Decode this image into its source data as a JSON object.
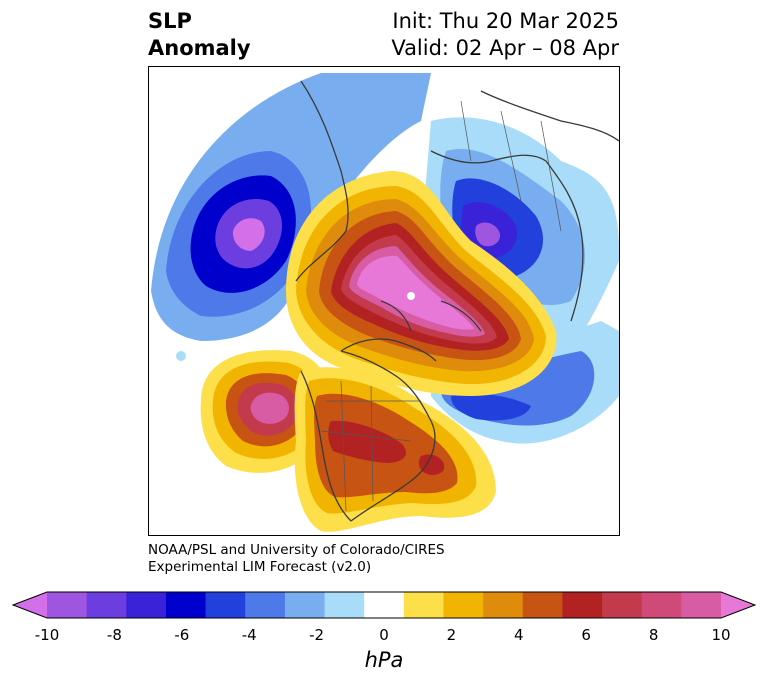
{
  "title": {
    "left_line1": "SLP",
    "left_line2": "Anomaly",
    "right_line1": "Init: Thu 20 Mar 2025",
    "right_line2": "Valid: 02 Apr – 08 Apr"
  },
  "credit": {
    "line1": "NOAA/PSL and University of Colorado/CIRES",
    "line2": "Experimental LIM Forecast (v2.0)"
  },
  "colorbar": {
    "unit": "hPa",
    "tick_labels": [
      "-10",
      "-8",
      "-6",
      "-4",
      "-2",
      "0",
      "2",
      "4",
      "6",
      "8",
      "10"
    ],
    "levels": [
      -10,
      -9,
      -8,
      -7,
      -6,
      -5,
      -4,
      -3,
      -2,
      -1,
      1,
      2,
      3,
      4,
      5,
      6,
      7,
      8,
      9,
      10
    ],
    "colors": [
      "#d36fe8",
      "#9e55e0",
      "#6c3ee0",
      "#3a22d8",
      "#0000cc",
      "#2241dc",
      "#4e79e8",
      "#78aef0",
      "#a8dcf8",
      "#ffffff",
      "#fddf4a",
      "#f1b400",
      "#df8c0c",
      "#c85414",
      "#b22222",
      "#c23a4c",
      "#cf4a78",
      "#d85ca4",
      "#e878d8"
    ]
  },
  "map": {
    "projection": "north-polar-stereographic",
    "variable": "sea level pressure anomaly",
    "features": [
      {
        "name": "north-pacific-low",
        "sign": "negative",
        "peak": -9
      },
      {
        "name": "scandinavian-low",
        "sign": "negative",
        "peak": -9
      },
      {
        "name": "north-atlantic-low",
        "sign": "negative",
        "peak": -6
      },
      {
        "name": "arctic-high",
        "sign": "positive",
        "peak": 10
      },
      {
        "name": "northeast-pacific-high",
        "sign": "positive",
        "peak": 9
      },
      {
        "name": "north-america-high",
        "sign": "positive",
        "peak": 6
      }
    ]
  }
}
